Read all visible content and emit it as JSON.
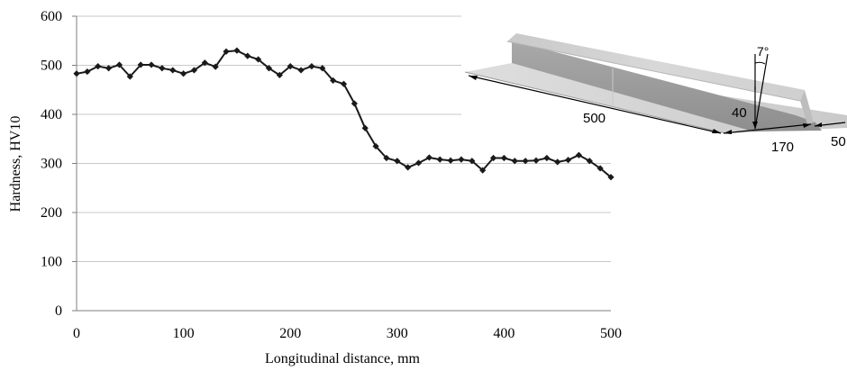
{
  "chart_data": {
    "type": "line",
    "title": "",
    "xlabel": "Longitudinal distance, mm",
    "ylabel": "Hardness, HV10",
    "xlim": [
      0,
      500
    ],
    "ylim": [
      0,
      600
    ],
    "xticks": [
      0,
      100,
      200,
      300,
      400,
      500
    ],
    "yticks": [
      0,
      100,
      200,
      300,
      400,
      500,
      600
    ],
    "grid": "horizontal",
    "legend": "none",
    "series": [
      {
        "color": "#1a1a1a",
        "marker": "diamond",
        "x": [
          0,
          10,
          20,
          30,
          40,
          50,
          60,
          70,
          80,
          90,
          100,
          110,
          120,
          130,
          140,
          150,
          160,
          170,
          180,
          190,
          200,
          210,
          220,
          230,
          240,
          250,
          260,
          270,
          280,
          290,
          300,
          310,
          320,
          330,
          340,
          350,
          360,
          370,
          380,
          390,
          400,
          410,
          420,
          430,
          440,
          450,
          460,
          470,
          480,
          490,
          500
        ],
        "y": [
          483,
          487,
          498,
          494,
          501,
          477,
          501,
          501,
          494,
          490,
          483,
          490,
          505,
          497,
          528,
          530,
          519,
          512,
          494,
          480,
          498,
          490,
          498,
          494,
          469,
          462,
          422,
          372,
          335,
          311,
          305,
          292,
          301,
          312,
          308,
          306,
          308,
          305,
          286,
          311,
          311,
          305,
          305,
          306,
          311,
          303,
          307,
          317,
          305,
          290,
          272
        ]
      }
    ]
  },
  "inset": {
    "dimensions": {
      "length": "500",
      "width": "170",
      "flange": "50",
      "height": "40",
      "angle": "7°"
    }
  }
}
